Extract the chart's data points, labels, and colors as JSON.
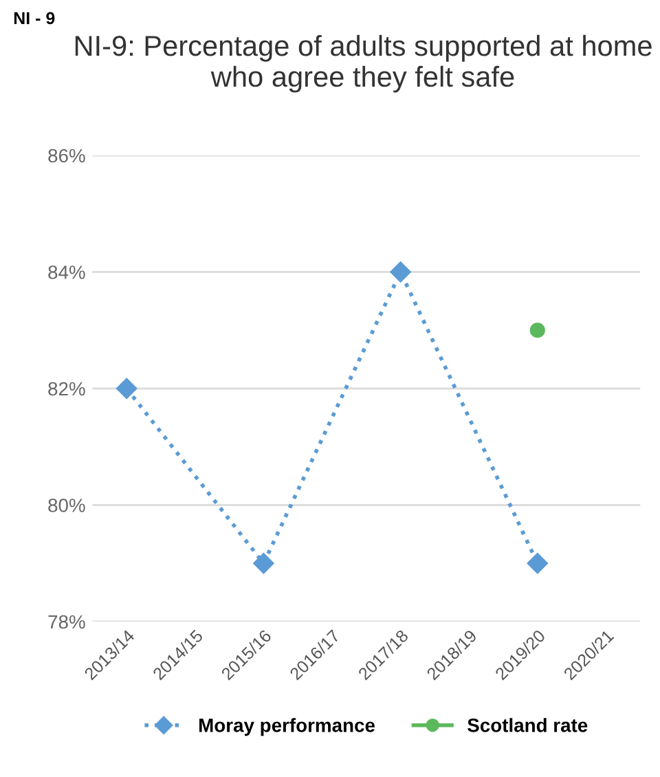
{
  "chart_data": {
    "type": "line",
    "title": "NI-9: Percentage of adults supported at home who agree they felt safe",
    "annotations": [
      "NI - 9"
    ],
    "categories": [
      "2013/14",
      "2014/15",
      "2015/16",
      "2016/17",
      "2017/18",
      "2018/19",
      "2019/20",
      "2020/21"
    ],
    "series": [
      {
        "name": "Moray performance",
        "color": "#5b9bd5",
        "values": [
          82,
          null,
          79,
          null,
          84,
          null,
          79,
          null
        ],
        "marker": "diamond",
        "line_style": "dotted"
      },
      {
        "name": "Scotland rate",
        "color": "#5cb85c",
        "values": [
          null,
          null,
          null,
          null,
          null,
          null,
          83,
          null
        ],
        "marker": "circle",
        "line_style": "solid"
      }
    ],
    "ylim": [
      78,
      86
    ],
    "yticks": [
      {
        "value": 78,
        "label": "78%"
      },
      {
        "value": 80,
        "label": "80%"
      },
      {
        "value": 82,
        "label": "82%"
      },
      {
        "value": 84,
        "label": "84%"
      },
      {
        "value": 86,
        "label": "86%"
      }
    ],
    "grid": "y",
    "legend": "bottom"
  }
}
